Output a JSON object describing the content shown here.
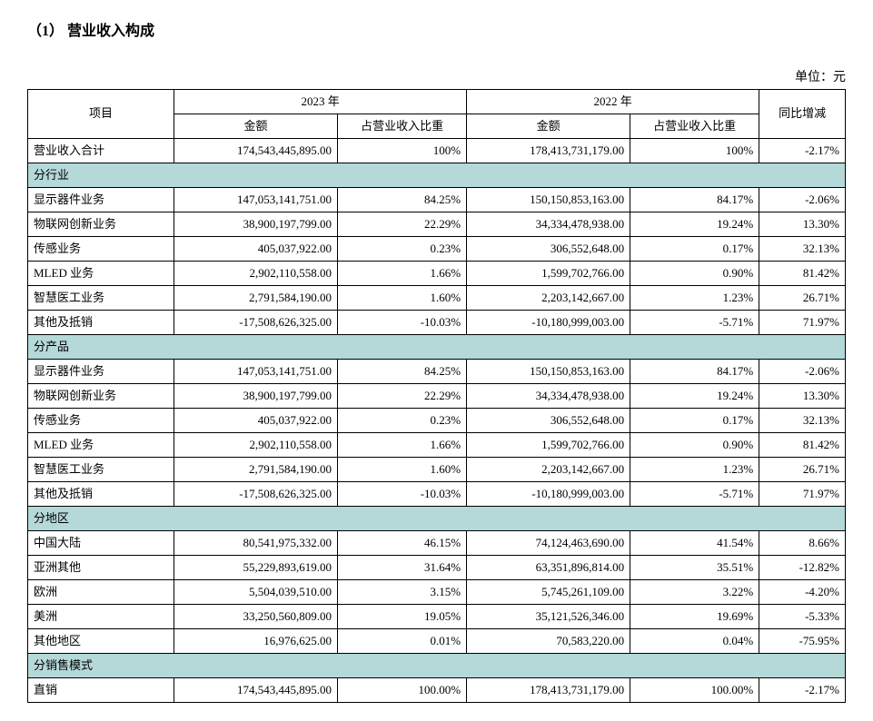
{
  "title": "（1）  营业收入构成",
  "unit": "单位：元",
  "header": {
    "item": "项目",
    "year2023": "2023 年",
    "year2022": "2022 年",
    "amount": "金额",
    "pct": "占营业收入比重",
    "yoy": "同比增减"
  },
  "total": {
    "label": "营业收入合计",
    "a2023": "174,543,445,895.00",
    "p2023": "100%",
    "a2022": "178,413,731,179.00",
    "p2022": "100%",
    "yoy": "-2.17%"
  },
  "sections": [
    {
      "name": "分行业",
      "rows": [
        {
          "label": "显示器件业务",
          "a2023": "147,053,141,751.00",
          "p2023": "84.25%",
          "a2022": "150,150,853,163.00",
          "p2022": "84.17%",
          "yoy": "-2.06%"
        },
        {
          "label": "物联网创新业务",
          "a2023": "38,900,197,799.00",
          "p2023": "22.29%",
          "a2022": "34,334,478,938.00",
          "p2022": "19.24%",
          "yoy": "13.30%"
        },
        {
          "label": "传感业务",
          "a2023": "405,037,922.00",
          "p2023": "0.23%",
          "a2022": "306,552,648.00",
          "p2022": "0.17%",
          "yoy": "32.13%"
        },
        {
          "label": "MLED 业务",
          "a2023": "2,902,110,558.00",
          "p2023": "1.66%",
          "a2022": "1,599,702,766.00",
          "p2022": "0.90%",
          "yoy": "81.42%"
        },
        {
          "label": "智慧医工业务",
          "a2023": "2,791,584,190.00",
          "p2023": "1.60%",
          "a2022": "2,203,142,667.00",
          "p2022": "1.23%",
          "yoy": "26.71%"
        },
        {
          "label": "其他及抵销",
          "a2023": "-17,508,626,325.00",
          "p2023": "-10.03%",
          "a2022": "-10,180,999,003.00",
          "p2022": "-5.71%",
          "yoy": "71.97%"
        }
      ]
    },
    {
      "name": "分产品",
      "rows": [
        {
          "label": "显示器件业务",
          "a2023": "147,053,141,751.00",
          "p2023": "84.25%",
          "a2022": "150,150,853,163.00",
          "p2022": "84.17%",
          "yoy": "-2.06%"
        },
        {
          "label": "物联网创新业务",
          "a2023": "38,900,197,799.00",
          "p2023": "22.29%",
          "a2022": "34,334,478,938.00",
          "p2022": "19.24%",
          "yoy": "13.30%"
        },
        {
          "label": "传感业务",
          "a2023": "405,037,922.00",
          "p2023": "0.23%",
          "a2022": "306,552,648.00",
          "p2022": "0.17%",
          "yoy": "32.13%"
        },
        {
          "label": "MLED 业务",
          "a2023": "2,902,110,558.00",
          "p2023": "1.66%",
          "a2022": "1,599,702,766.00",
          "p2022": "0.90%",
          "yoy": "81.42%"
        },
        {
          "label": "智慧医工业务",
          "a2023": "2,791,584,190.00",
          "p2023": "1.60%",
          "a2022": "2,203,142,667.00",
          "p2022": "1.23%",
          "yoy": "26.71%"
        },
        {
          "label": "其他及抵销",
          "a2023": "-17,508,626,325.00",
          "p2023": "-10.03%",
          "a2022": "-10,180,999,003.00",
          "p2022": "-5.71%",
          "yoy": "71.97%"
        }
      ]
    },
    {
      "name": "分地区",
      "rows": [
        {
          "label": "中国大陆",
          "a2023": "80,541,975,332.00",
          "p2023": "46.15%",
          "a2022": "74,124,463,690.00",
          "p2022": "41.54%",
          "yoy": "8.66%"
        },
        {
          "label": "亚洲其他",
          "a2023": "55,229,893,619.00",
          "p2023": "31.64%",
          "a2022": "63,351,896,814.00",
          "p2022": "35.51%",
          "yoy": "-12.82%"
        },
        {
          "label": "欧洲",
          "a2023": "5,504,039,510.00",
          "p2023": "3.15%",
          "a2022": "5,745,261,109.00",
          "p2022": "3.22%",
          "yoy": "-4.20%"
        },
        {
          "label": "美洲",
          "a2023": "33,250,560,809.00",
          "p2023": "19.05%",
          "a2022": "35,121,526,346.00",
          "p2022": "19.69%",
          "yoy": "-5.33%"
        },
        {
          "label": "其他地区",
          "a2023": "16,976,625.00",
          "p2023": "0.01%",
          "a2022": "70,583,220.00",
          "p2022": "0.04%",
          "yoy": "-75.95%"
        }
      ]
    },
    {
      "name": "分销售模式",
      "rows": [
        {
          "label": "直销",
          "a2023": "174,543,445,895.00",
          "p2023": "100.00%",
          "a2022": "178,413,731,179.00",
          "p2022": "100.00%",
          "yoy": "-2.17%"
        }
      ]
    }
  ],
  "style": {
    "section_bg": "#b5d8d8",
    "border_color": "#000000",
    "font_size_body": 13,
    "font_size_title": 16
  }
}
